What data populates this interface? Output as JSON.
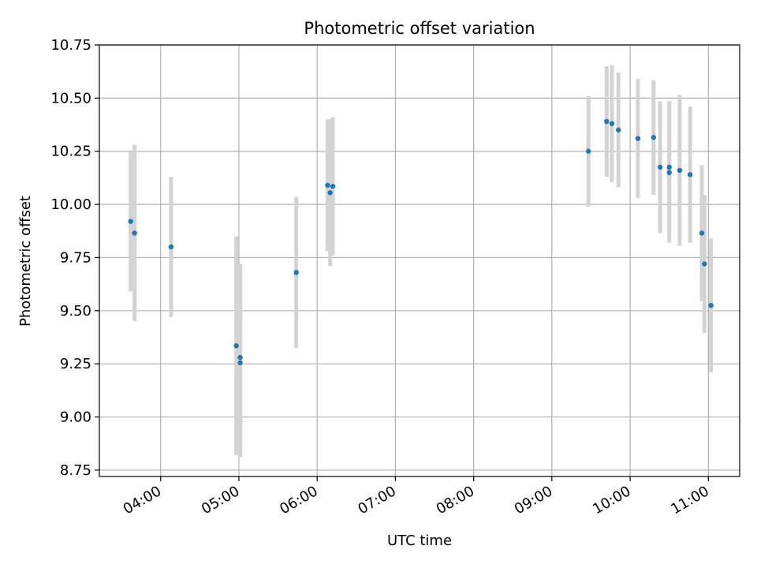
{
  "chart_data": {
    "type": "scatter",
    "title": "Photometric offset variation",
    "xlabel": "UTC time",
    "ylabel": "Photometric offset",
    "x_unit": "UTC time",
    "xlim": [
      "03:13",
      "11:24"
    ],
    "ylim": [
      8.72,
      10.75
    ],
    "x_ticks": [
      "04:00",
      "05:00",
      "06:00",
      "07:00",
      "08:00",
      "09:00",
      "10:00",
      "11:00"
    ],
    "y_ticks": [
      "8.75",
      "9.00",
      "9.25",
      "9.50",
      "9.75",
      "10.00",
      "10.25",
      "10.50",
      "10.75"
    ],
    "grid": true,
    "legend": "none",
    "colors": {
      "points": "#1f77b4",
      "error_bars": "#d3d3d3",
      "grid": "#b0b0b0",
      "axes": "#000000"
    },
    "series": [
      {
        "points": [
          {
            "x": "03:37",
            "y": 9.92,
            "err": 0.33
          },
          {
            "x": "03:40",
            "y": 9.865,
            "err": 0.415
          },
          {
            "x": "04:08",
            "y": 9.8,
            "err": 0.33
          },
          {
            "x": "04:58",
            "y": 9.335,
            "err": 0.515
          },
          {
            "x": "05:01",
            "y": 9.28,
            "err": 0.44
          },
          {
            "x": "05:01",
            "y": 9.255,
            "err": 0.445
          },
          {
            "x": "05:44",
            "y": 9.68,
            "err": 0.355
          },
          {
            "x": "06:08",
            "y": 10.09,
            "err": 0.31
          },
          {
            "x": "06:10",
            "y": 10.055,
            "err": 0.345
          },
          {
            "x": "06:12",
            "y": 10.085,
            "err": 0.325
          },
          {
            "x": "09:28",
            "y": 10.25,
            "err": 0.26
          },
          {
            "x": "09:42",
            "y": 10.39,
            "err": 0.26
          },
          {
            "x": "09:46",
            "y": 10.38,
            "err": 0.275
          },
          {
            "x": "09:51",
            "y": 10.35,
            "err": 0.27
          },
          {
            "x": "10:06",
            "y": 10.31,
            "err": 0.28
          },
          {
            "x": "10:18",
            "y": 10.315,
            "err": 0.27
          },
          {
            "x": "10:23",
            "y": 10.175,
            "err": 0.31
          },
          {
            "x": "10:30",
            "y": 10.175,
            "err": 0.31
          },
          {
            "x": "10:30",
            "y": 10.15,
            "err": 0.33
          },
          {
            "x": "10:38",
            "y": 10.16,
            "err": 0.355
          },
          {
            "x": "10:46",
            "y": 10.14,
            "err": 0.32
          },
          {
            "x": "10:55",
            "y": 9.865,
            "err": 0.32
          },
          {
            "x": "10:57",
            "y": 9.72,
            "err": 0.325
          },
          {
            "x": "11:02",
            "y": 9.525,
            "err": 0.315
          }
        ]
      }
    ]
  }
}
